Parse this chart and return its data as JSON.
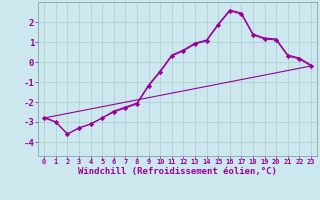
{
  "background_color": "#cce8ee",
  "grid_color": "#aacccc",
  "line_color": "#990099",
  "xlabel": "Windchill (Refroidissement éolien,°C)",
  "xlabel_fontsize": 6.5,
  "ytick_labels": [
    "2",
    "1",
    "0",
    "-1",
    "-2",
    "-3",
    "-4"
  ],
  "yticks": [
    2,
    1,
    0,
    -1,
    -2,
    -3,
    -4
  ],
  "xtick_labels": [
    "0",
    "1",
    "2",
    "3",
    "4",
    "5",
    "6",
    "7",
    "8",
    "9",
    "10",
    "11",
    "12",
    "13",
    "14",
    "15",
    "16",
    "17",
    "18",
    "19",
    "20",
    "21",
    "22",
    "23"
  ],
  "xticks": [
    0,
    1,
    2,
    3,
    4,
    5,
    6,
    7,
    8,
    9,
    10,
    11,
    12,
    13,
    14,
    15,
    16,
    17,
    18,
    19,
    20,
    21,
    22,
    23
  ],
  "ylim": [
    -4.7,
    3.0
  ],
  "xlim": [
    -0.5,
    23.5
  ],
  "series0_x": [
    0,
    1,
    2,
    3,
    4,
    5,
    6,
    7,
    8,
    9,
    10,
    11,
    12,
    13,
    14,
    15,
    16,
    17,
    18,
    19,
    20,
    21,
    22,
    23
  ],
  "series0_y": [
    -2.8,
    -3.0,
    -3.6,
    -3.3,
    -3.1,
    -2.8,
    -2.5,
    -2.3,
    -2.1,
    -1.2,
    -0.5,
    0.3,
    0.55,
    0.9,
    1.05,
    1.85,
    2.55,
    2.4,
    1.35,
    1.15,
    1.1,
    0.3,
    0.15,
    -0.2
  ],
  "series1_x": [
    0,
    23
  ],
  "series1_y": [
    -2.8,
    -0.2
  ],
  "series2_x": [
    0,
    1,
    2,
    3,
    4,
    5,
    6,
    7,
    8,
    9,
    10,
    11,
    12,
    13,
    14,
    15,
    16,
    17,
    18,
    19,
    20,
    21,
    22,
    23
  ],
  "series2_y": [
    -2.75,
    -3.0,
    -3.6,
    -3.3,
    -3.1,
    -2.8,
    -2.45,
    -2.25,
    -2.05,
    -1.15,
    -0.45,
    0.35,
    0.6,
    0.95,
    1.1,
    1.9,
    2.6,
    2.45,
    1.4,
    1.2,
    1.15,
    0.35,
    0.2,
    -0.15
  ]
}
